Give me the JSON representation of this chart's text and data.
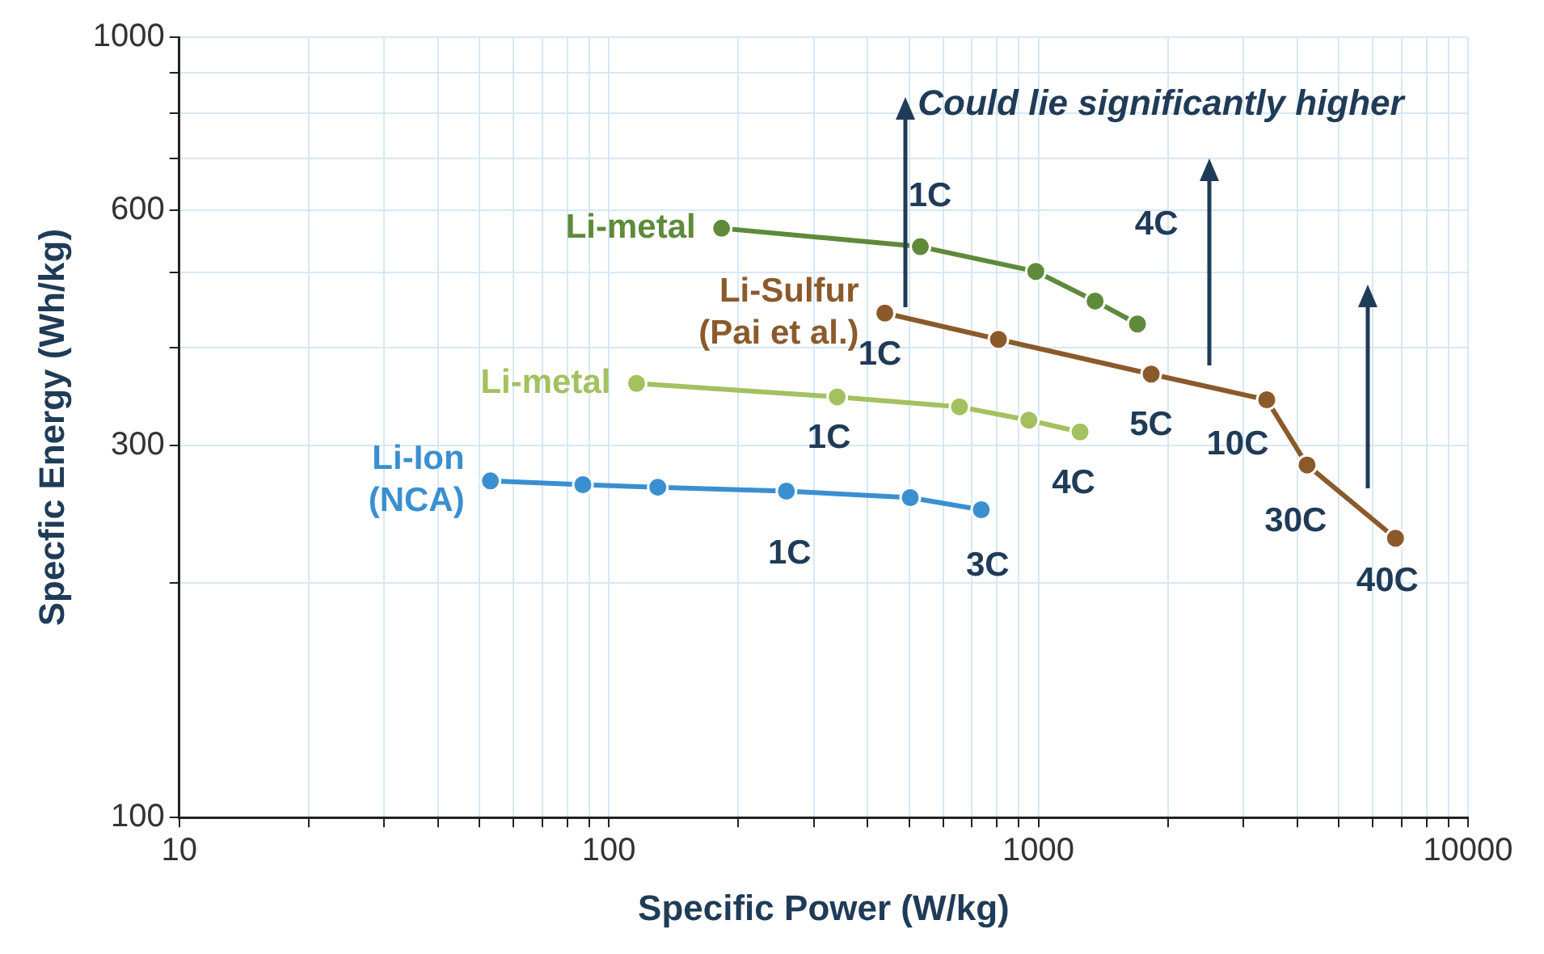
{
  "chart_data": {
    "type": "line",
    "xlabel": "Specific Power (W/kg)",
    "ylabel": "Specfic Energy (Wh/kg)",
    "log": "xy",
    "grid": true,
    "legend": false,
    "marker": "circle",
    "line_style": "solid",
    "xlim": [
      10,
      10000
    ],
    "ylim": [
      100,
      1000
    ],
    "xticks": [
      10,
      {
        "value": 20,
        "label": null
      },
      {
        "value": 30,
        "label": null
      },
      {
        "value": 40,
        "label": null
      },
      {
        "value": 50,
        "label": null
      },
      {
        "value": 60,
        "label": null
      },
      {
        "value": 70,
        "label": null
      },
      {
        "value": 80,
        "label": null
      },
      {
        "value": 90,
        "label": null
      },
      100,
      {
        "value": 200,
        "label": null
      },
      {
        "value": 300,
        "label": null
      },
      {
        "value": 400,
        "label": null
      },
      {
        "value": 500,
        "label": null
      },
      {
        "value": 600,
        "label": null
      },
      {
        "value": 700,
        "label": null
      },
      {
        "value": 800,
        "label": null
      },
      {
        "value": 900,
        "label": null
      },
      1000,
      {
        "value": 2000,
        "label": null
      },
      {
        "value": 3000,
        "label": null
      },
      {
        "value": 4000,
        "label": null
      },
      {
        "value": 5000,
        "label": null
      },
      {
        "value": 6000,
        "label": null
      },
      {
        "value": 7000,
        "label": null
      },
      {
        "value": 8000,
        "label": null
      },
      {
        "value": 9000,
        "label": null
      },
      10000
    ],
    "yticks": [
      100,
      {
        "value": 200,
        "label": null
      },
      300,
      {
        "value": 400,
        "label": null
      },
      {
        "value": 500,
        "label": null
      },
      600,
      {
        "value": 700,
        "label": null
      },
      {
        "value": 800,
        "label": null
      },
      {
        "value": 900,
        "label": null
      },
      1000
    ],
    "series": [
      {
        "name": "Li-Ion (NCA)",
        "color": "#3a8fd0",
        "x": [
          53,
          87,
          130,
          259,
          503,
          736
        ],
        "values": [
          270,
          267,
          265,
          262,
          257,
          248
        ]
      },
      {
        "name": "Li-metal",
        "color": "#a3c15f",
        "x": [
          116,
          340,
          655,
          950,
          1250
        ],
        "values": [
          360,
          346,
          336,
          323,
          312
        ]
      },
      {
        "name": "Li-metal",
        "color": "#5e8a3a",
        "x": [
          183,
          531,
          986,
          1355,
          1700
        ],
        "values": [
          569,
          539,
          501,
          459,
          429
        ]
      },
      {
        "name": "Li-Sulfur (Pai et al.)",
        "color": "#8b5a2b",
        "x": [
          439,
          807,
          1830,
          3400,
          4220,
          6780
        ],
        "values": [
          443,
          410,
          370,
          343,
          283,
          228
        ]
      }
    ],
    "annotations": [
      "Could lie significantly higher",
      {
        "text": "1C",
        "x": 531,
        "y": 539
      },
      {
        "text": "4C",
        "x": 1355,
        "y": 459
      },
      {
        "text": "1C",
        "x": 439,
        "y": 443
      },
      {
        "text": "1C",
        "x": 340,
        "y": 346
      },
      {
        "text": "4C",
        "x": 1250,
        "y": 312
      },
      {
        "text": "5C",
        "x": 1830,
        "y": 370
      },
      {
        "text": "10C",
        "x": 3400,
        "y": 343
      },
      {
        "text": "30C",
        "x": 4220,
        "y": 283
      },
      {
        "text": "40C",
        "x": 6780,
        "y": 228
      },
      {
        "text": "1C",
        "x": 259,
        "y": 262
      },
      {
        "text": "3C",
        "x": 736,
        "y": 248
      }
    ]
  }
}
